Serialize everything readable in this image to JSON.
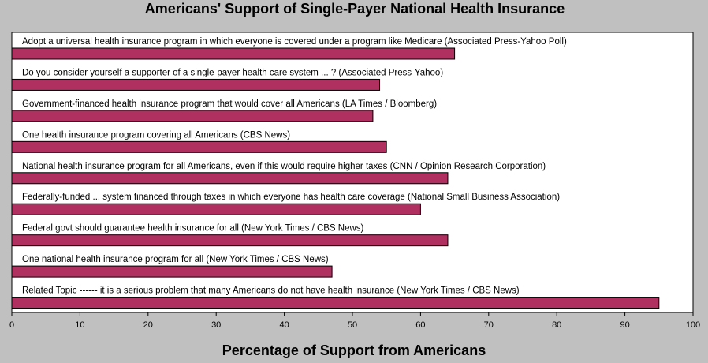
{
  "chart_data": {
    "type": "bar",
    "orientation": "horizontal",
    "title": "Americans' Support of Single-Payer National Health Insurance",
    "xlabel": "Percentage of Support from Americans",
    "ylabel": "",
    "xlim": [
      0,
      100
    ],
    "x_ticks": [
      "0",
      "10",
      "20",
      "30",
      "40",
      "50",
      "60",
      "70",
      "80",
      "90",
      "100"
    ],
    "grid": false,
    "legend": "none",
    "bar_color": "#b03060",
    "categories": [
      "Adopt a universal health insurance program in which everyone is covered under a program like Medicare  (Associated Press-Yahoo Poll)",
      "Do you consider yourself a supporter of a single-payer health care system ... ? (Associated Press-Yahoo)",
      "Government-financed health insurance program that would cover all Americans (LA Times / Bloomberg)",
      "One health insurance program covering all Americans (CBS News)",
      "National health insurance program for all Americans, even if this would require higher taxes (CNN / Opinion Research Corporation)",
      "Federally-funded ... system financed through taxes in which everyone has health care coverage (National Small Business Association)",
      "Federal govt should guarantee health insurance for all (New York Times / CBS News)",
      "One national health insurance program for all (New York Times / CBS News)",
      "Related Topic ------ it is a serious problem that many Americans do not have health insurance (New York Times / CBS News)"
    ],
    "values": [
      65,
      54,
      53,
      55,
      64,
      60,
      64,
      47,
      95
    ]
  }
}
